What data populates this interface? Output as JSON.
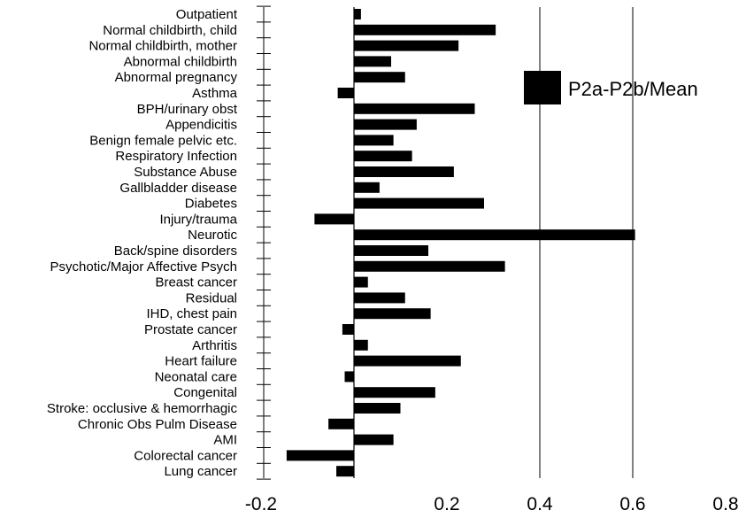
{
  "chart_data": {
    "type": "bar",
    "orientation": "horizontal",
    "categories": [
      "Outpatient",
      "Normal childbirth, child",
      "Normal childbirth, mother",
      "Abnormal childbirth",
      "Abnormal pregnancy",
      "Asthma",
      "BPH/urinary obst",
      "Appendicitis",
      "Benign female pelvic etc.",
      "Respiratory Infection",
      "Substance Abuse",
      "Gallbladder disease",
      "Diabetes",
      "Injury/trauma",
      "Neurotic",
      "Back/spine disorders",
      "Psychotic/Major Affective Psych",
      "Breast cancer",
      "Residual",
      "IHD, chest pain",
      "Prostate cancer",
      "Arthritis",
      "Heart failure",
      "Neonatal care",
      "Congenital",
      "Stroke: occlusive & hemorrhagic",
      "Chronic Obs Pulm Disease",
      "AMI",
      "Colorectal cancer",
      "Lung cancer"
    ],
    "series": [
      {
        "name": "P2a-P2b/Mean",
        "color": "#000000",
        "values": [
          0.015,
          0.305,
          0.225,
          0.08,
          0.11,
          -0.035,
          0.26,
          0.135,
          0.085,
          0.125,
          0.215,
          0.055,
          0.28,
          -0.085,
          0.605,
          0.16,
          0.325,
          0.03,
          0.11,
          0.165,
          -0.025,
          0.03,
          0.23,
          -0.02,
          0.175,
          0.1,
          -0.055,
          0.085,
          -0.145,
          -0.038
        ]
      }
    ],
    "xlim": [
      -0.2,
      0.8
    ],
    "xticks": [
      -0.2,
      0.2,
      0.4,
      0.6,
      0.8
    ],
    "xtick_labels": [
      "-0.2",
      "0.2",
      "0.4",
      "0.6",
      "0.8"
    ],
    "vertical_gridlines_at": [
      0,
      0.4,
      0.6
    ],
    "legend": {
      "position": "top-right",
      "entries": [
        "P2a-P2b/Mean"
      ]
    },
    "title": "",
    "xlabel": "",
    "ylabel": ""
  }
}
